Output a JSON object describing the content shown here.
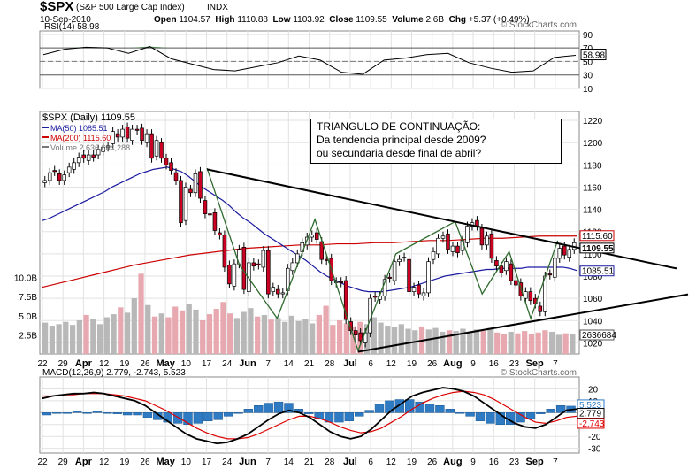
{
  "header": {
    "symbol": "$SPX",
    "name": "(S&P 500 Large Cap Index)",
    "exchange": "INDX",
    "date": "10-Sep-2010",
    "open_label": "Open",
    "open": "1104.57",
    "high_label": "High",
    "high": "1110.88",
    "low_label": "Low",
    "low": "1103.92",
    "close_label": "Close",
    "close": "1109.55",
    "volume_label": "Volume",
    "volume": "2.6B",
    "chg_label": "Chg",
    "chg": "+5.37 (+0.49%)",
    "copyright": "© StockCharts.com"
  },
  "annotation": {
    "line1": "TRIANGULO DE CONTINUAÇÃO:",
    "line2": "Da tendencia principal desde 2009?",
    "line3": " ou secundaria desde final de abril?"
  },
  "colors": {
    "up_candle": "#ffffff",
    "down_candle": "#cc0022",
    "ma50": "#1a1aa0",
    "ma200": "#cc0000",
    "zigzag": "#2f6b2f",
    "volume_up": "#b8b8b8",
    "volume_down": "#e8a8b0",
    "macd_hist": "#2e7bc4",
    "macd_line": "#000000",
    "macd_signal": "#dd0000",
    "rsi_fill": "#2f6b2f"
  },
  "chart_data": [
    {
      "panel": "rsi",
      "type": "line",
      "title": "RSI(14) 58.98",
      "y_ticks": [
        10,
        30,
        50,
        70,
        90
      ],
      "ylim": [
        10,
        95
      ],
      "last_label": "58.98",
      "x": [
        "Mar22",
        "Mar29",
        "Apr5",
        "Apr12",
        "Apr19",
        "Apr26",
        "May3",
        "May10",
        "May17",
        "May24",
        "Jun1",
        "Jun7",
        "Jun14",
        "Jun21",
        "Jun28",
        "Jul6",
        "Jul12",
        "Jul19",
        "Jul26",
        "Aug2",
        "Aug9",
        "Aug16",
        "Aug23",
        "Aug30",
        "Sep7",
        "Sep10"
      ],
      "values": [
        60,
        68,
        71,
        70,
        62,
        72,
        54,
        46,
        38,
        36,
        42,
        48,
        58,
        52,
        34,
        31,
        52,
        55,
        60,
        62,
        48,
        40,
        34,
        36,
        56,
        59
      ]
    },
    {
      "panel": "price",
      "type": "candlestick",
      "title": "$SPX (Daily) 1109.55",
      "legend": [
        {
          "name": "MA(50) 1085.51",
          "color": "#1a1aa0"
        },
        {
          "name": "MA(200) 1115.60",
          "color": "#cc0000"
        },
        {
          "name": "Volume 2,636,684,288",
          "color": "#777777"
        }
      ],
      "y_ticks": [
        1020,
        1040,
        1060,
        1080,
        1100,
        1120,
        1140,
        1160,
        1180,
        1200,
        1220
      ],
      "ylim": [
        1010,
        1228
      ],
      "volume_ticks": [
        "2.5B",
        "5.0B",
        "7.5B",
        "10.0B"
      ],
      "x_ticks": [
        "22",
        "29",
        "Apr",
        "12",
        "19",
        "26",
        "May",
        "10",
        "17",
        "24",
        "Jun",
        "7",
        "14",
        "21",
        "28",
        "Jul",
        "6",
        "12",
        "19",
        "26",
        "Aug",
        "9",
        "16",
        "23",
        "Sep",
        "7"
      ],
      "right_labels": [
        "1115.60",
        "1109.55",
        "1085.51",
        "2636684"
      ],
      "closes": [
        1166,
        1173,
        1174,
        1166,
        1171,
        1178,
        1182,
        1187,
        1186,
        1189,
        1187,
        1194,
        1196,
        1197,
        1210,
        1205,
        1212,
        1204,
        1212,
        1211,
        1202,
        1208,
        1186,
        1202,
        1186,
        1180,
        1175,
        1166,
        1128,
        1160,
        1155,
        1172,
        1150,
        1136,
        1135,
        1121,
        1117,
        1088,
        1073,
        1091,
        1104,
        1068,
        1092,
        1089,
        1090,
        1103,
        1064,
        1070,
        1064,
        1065,
        1087,
        1092,
        1100,
        1110,
        1115,
        1117,
        1113,
        1095,
        1094,
        1076,
        1075,
        1074,
        1041,
        1031,
        1027,
        1022,
        1029,
        1060,
        1061,
        1062,
        1077,
        1078,
        1093,
        1095,
        1097,
        1066,
        1070,
        1064,
        1065,
        1093,
        1102,
        1114,
        1116,
        1104,
        1107,
        1101,
        1112,
        1125,
        1128,
        1125,
        1108,
        1116,
        1096,
        1089,
        1083,
        1093,
        1076,
        1072,
        1062,
        1066,
        1058,
        1055,
        1048,
        1080,
        1081,
        1096,
        1105,
        1099,
        1104,
        1110
      ],
      "ma50": [
        1130,
        1132,
        1135,
        1138,
        1141,
        1144,
        1147,
        1150,
        1153,
        1156,
        1160,
        1163,
        1166,
        1169,
        1172,
        1174,
        1176,
        1177,
        1178,
        1176,
        1174,
        1170,
        1165,
        1160,
        1156,
        1152,
        1148,
        1143,
        1137,
        1132,
        1128,
        1123,
        1118,
        1114,
        1110,
        1106,
        1102,
        1098,
        1094,
        1089,
        1084,
        1080,
        1077,
        1074,
        1071,
        1069,
        1067,
        1066,
        1066,
        1066,
        1067,
        1068,
        1069,
        1070,
        1072,
        1074,
        1076,
        1078,
        1080,
        1081,
        1082,
        1083,
        1084,
        1085,
        1086,
        1086,
        1087,
        1087,
        1087,
        1087,
        1088,
        1088,
        1088,
        1088,
        1088,
        1088,
        1087,
        1085
      ],
      "ma200": [
        1070,
        1074,
        1078,
        1082,
        1086,
        1090,
        1093,
        1096,
        1099,
        1101,
        1103,
        1105,
        1106,
        1107,
        1108,
        1108,
        1109,
        1109,
        1110,
        1110,
        1111,
        1112,
        1112,
        1113,
        1114,
        1114,
        1115,
        1116,
        1116,
        1116
      ],
      "volume_billion": [
        4.1,
        3.7,
        3.9,
        4.2,
        3.8,
        4.4,
        5.1,
        4.6,
        3.9,
        4.8,
        5.2,
        6.1,
        5.4,
        7.3,
        10.5,
        6.4,
        4.9,
        5.3,
        4.8,
        6.2,
        5.7,
        6.6,
        5.8,
        4.4,
        5.2,
        5.9,
        6.8,
        5.3,
        4.7,
        5.5,
        6.0,
        4.9,
        5.1,
        4.5,
        4.7,
        4.2,
        5.0,
        4.3,
        4.6,
        4.0,
        5.1,
        6.3,
        3.8,
        4.4,
        4.0,
        3.5,
        4.2,
        3.9,
        4.8,
        4.1,
        3.7,
        3.5,
        3.9,
        3.3,
        3.1,
        3.6,
        3.2,
        3.4,
        2.9,
        3.1,
        3.0,
        3.3,
        2.8,
        3.2,
        3.0,
        3.4,
        2.8,
        2.6,
        2.9,
        2.7,
        3.0,
        2.6,
        2.8,
        3.1,
        2.9,
        2.5,
        2.7,
        2.6
      ]
    },
    {
      "panel": "macd",
      "type": "line",
      "title": "MACD(12,26,9) 2.779, -2.743, 5.523",
      "y_ticks": [
        -30,
        -20,
        -10,
        0,
        10,
        20
      ],
      "ylim": [
        -34,
        30
      ],
      "right_labels": [
        "5.523",
        "2.779",
        "-2.743"
      ],
      "macd": [
        12,
        14,
        15,
        16,
        16,
        17,
        16,
        14,
        12,
        10,
        6,
        0,
        -6,
        -12,
        -18,
        -22,
        -24,
        -26,
        -25,
        -22,
        -18,
        -12,
        -6,
        -1,
        2,
        0,
        -4,
        -10,
        -16,
        -20,
        -22,
        -20,
        -14,
        -6,
        2,
        8,
        14,
        17,
        19,
        21,
        20,
        18,
        14,
        8,
        2,
        -4,
        -9,
        -12,
        -13,
        -10,
        -4,
        2,
        3
      ],
      "signal": [
        14,
        14,
        15,
        15,
        16,
        16,
        16,
        15,
        14,
        12,
        10,
        6,
        2,
        -3,
        -8,
        -13,
        -17,
        -20,
        -22,
        -22,
        -21,
        -18,
        -14,
        -10,
        -6,
        -3,
        -3,
        -5,
        -8,
        -12,
        -15,
        -17,
        -16,
        -13,
        -8,
        -3,
        3,
        8,
        12,
        15,
        17,
        18,
        17,
        15,
        11,
        6,
        1,
        -4,
        -8,
        -9,
        -7,
        -4,
        -3
      ],
      "histogram": [
        -2,
        0,
        0,
        1,
        0,
        1,
        0,
        -1,
        -2,
        -2,
        -4,
        -6,
        -8,
        -9,
        -10,
        -9,
        -7,
        -6,
        -3,
        0,
        3,
        6,
        8,
        9,
        8,
        3,
        -1,
        -5,
        -8,
        -8,
        -7,
        -3,
        2,
        7,
        10,
        11,
        11,
        9,
        7,
        6,
        3,
        0,
        -3,
        -7,
        -9,
        -10,
        -10,
        -8,
        -5,
        -1,
        3,
        6,
        5.5
      ],
      "x_ticks": [
        "22",
        "29",
        "Apr",
        "12",
        "19",
        "26",
        "May",
        "10",
        "17",
        "24",
        "Jun",
        "7",
        "14",
        "21",
        "28",
        "Jul",
        "6",
        "12",
        "19",
        "26",
        "Aug",
        "9",
        "16",
        "23",
        "Sep",
        "7"
      ]
    }
  ]
}
